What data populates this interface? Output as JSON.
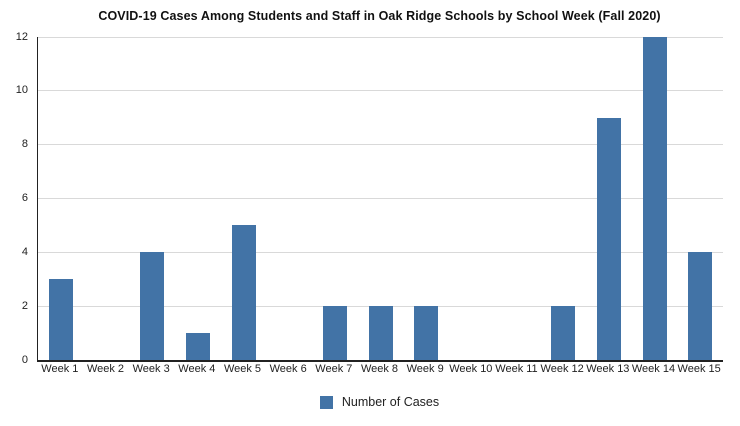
{
  "chart_data": {
    "type": "bar",
    "title": "COVID-19 Cases Among Students and Staff in Oak Ridge Schools by School Week (Fall 2020)",
    "categories": [
      "Week 1",
      "Week 2",
      "Week 3",
      "Week 4",
      "Week 5",
      "Week 6",
      "Week 7",
      "Week 8",
      "Week 9",
      "Week 10",
      "Week 11",
      "Week 12",
      "Week 13",
      "Week 14",
      "Week 15"
    ],
    "values": [
      3,
      0,
      4,
      1,
      5,
      0,
      2,
      2,
      2,
      0,
      0,
      2,
      9,
      12,
      4
    ],
    "legend": "Number of Cases",
    "legend_position": "bottom",
    "xlabel": "",
    "ylabel": "",
    "ylim": [
      0,
      12
    ],
    "yticks": [
      0,
      2,
      4,
      6,
      8,
      10,
      12
    ],
    "grid": true,
    "colors": {
      "bar": "#4273a6",
      "gridline": "#d9d9d9",
      "axis": "#222222",
      "text": "#222222",
      "background": "#ffffff"
    }
  }
}
